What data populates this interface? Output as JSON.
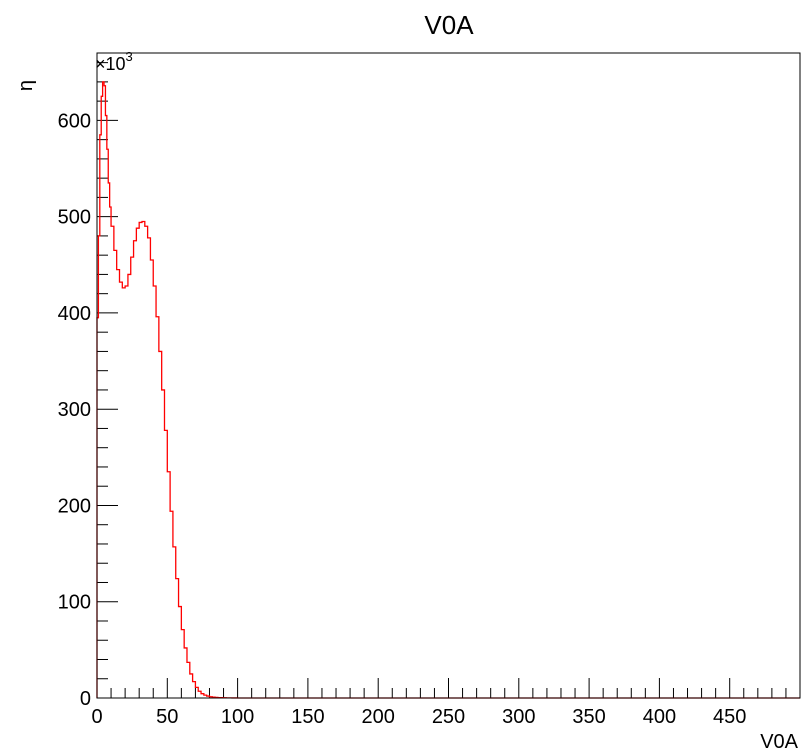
{
  "chart_data": {
    "type": "line",
    "title": "V0A",
    "xlabel": "V0A",
    "ylabel": "η",
    "y_multiplier": "×10",
    "y_multiplier_exp": "3",
    "xlim": [
      0,
      500
    ],
    "ylim": [
      0,
      670
    ],
    "x_ticks": [
      0,
      50,
      100,
      150,
      200,
      250,
      300,
      350,
      400,
      450
    ],
    "x_tick_labels": [
      "0",
      "50",
      "100",
      "150",
      "200",
      "250",
      "300",
      "350",
      "400",
      "450"
    ],
    "y_ticks": [
      0,
      100,
      200,
      300,
      400,
      500,
      600
    ],
    "y_tick_labels": [
      "0",
      "100",
      "200",
      "300",
      "400",
      "500",
      "600"
    ],
    "series": [
      {
        "color": "#ff0000",
        "x": [
          0,
          1,
          2,
          3,
          4,
          5,
          6,
          7,
          8,
          9,
          10,
          12,
          14,
          16,
          18,
          20,
          22,
          24,
          26,
          28,
          30,
          32,
          34,
          36,
          38,
          40,
          42,
          44,
          46,
          48,
          50,
          52,
          54,
          56,
          58,
          60,
          62,
          64,
          66,
          68,
          70,
          72,
          74,
          76,
          78,
          80,
          82,
          84,
          86,
          88,
          90,
          92,
          94,
          96,
          98,
          100,
          105,
          110,
          120,
          150,
          200,
          250,
          300,
          350,
          400,
          450,
          500
        ],
        "y": [
          395,
          480,
          585,
          625,
          640,
          636,
          605,
          570,
          535,
          510,
          490,
          465,
          445,
          432,
          426,
          428,
          440,
          458,
          475,
          488,
          494,
          495,
          490,
          478,
          455,
          428,
          396,
          360,
          320,
          278,
          235,
          194,
          157,
          124,
          95,
          71,
          52,
          37,
          25,
          17,
          11,
          7,
          4.5,
          3,
          2,
          1.3,
          0.9,
          0.6,
          0.4,
          0.3,
          0.2,
          0.15,
          0.1,
          0.07,
          0.05,
          0.03,
          0.01,
          0,
          0,
          0,
          0,
          0,
          0,
          0,
          0,
          0,
          0
        ]
      }
    ]
  }
}
